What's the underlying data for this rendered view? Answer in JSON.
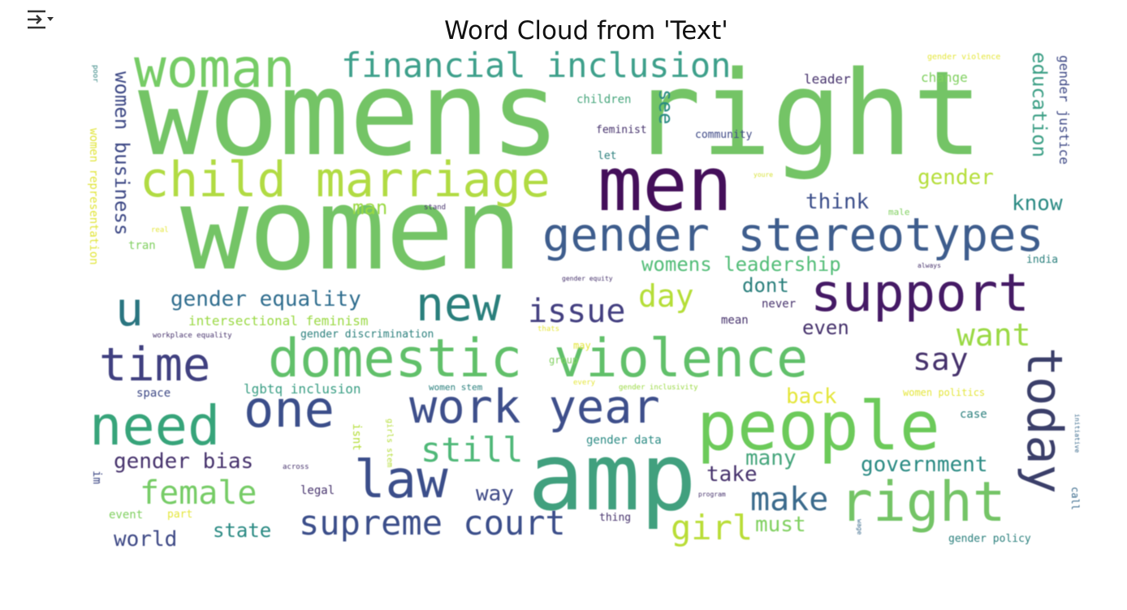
{
  "toolbar": {
    "icon": "output-collapse-icon"
  },
  "chart_data": {
    "type": "wordcloud",
    "title": "Word Cloud from 'Text'",
    "words": [
      {
        "text": "womens right",
        "color": "#74c466"
      },
      {
        "text": "women",
        "color": "#74c466"
      },
      {
        "text": "amp",
        "color": "#41a07e"
      },
      {
        "text": "men",
        "color": "#440f5a"
      },
      {
        "text": "people",
        "color": "#6cca5a"
      },
      {
        "text": "woman",
        "color": "#76cc66"
      },
      {
        "text": "child marriage",
        "color": "#b1db43"
      },
      {
        "text": "domestic violence",
        "color": "#61c06a"
      },
      {
        "text": "gender stereotypes",
        "color": "#3e5d8d"
      },
      {
        "text": "support",
        "color": "#451a65"
      },
      {
        "text": "right",
        "color": "#74c466"
      },
      {
        "text": "today",
        "color": "#3b3f6a"
      },
      {
        "text": "need",
        "color": "#37a47a"
      },
      {
        "text": "one",
        "color": "#3b4e8a"
      },
      {
        "text": "law",
        "color": "#3b4e8a"
      },
      {
        "text": "work year",
        "color": "#3e4f8b"
      },
      {
        "text": "time",
        "color": "#404080"
      },
      {
        "text": "new",
        "color": "#2a7f7c"
      },
      {
        "text": "u",
        "color": "#2a7580"
      },
      {
        "text": "financial inclusion",
        "color": "#3ea08b"
      },
      {
        "text": "issue",
        "color": "#433f80"
      },
      {
        "text": "supreme court",
        "color": "#3b4e8a"
      },
      {
        "text": "still",
        "color": "#4fb878"
      },
      {
        "text": "female",
        "color": "#76cc66"
      },
      {
        "text": "girl",
        "color": "#b9dd37"
      },
      {
        "text": "make",
        "color": "#3a6a8c"
      },
      {
        "text": "say",
        "color": "#46326c"
      },
      {
        "text": "want",
        "color": "#9ad944"
      },
      {
        "text": "day",
        "color": "#b5de38"
      },
      {
        "text": "gender equality",
        "color": "#2f6d8e"
      },
      {
        "text": "womens leadership",
        "color": "#53bd78"
      },
      {
        "text": "gender bias",
        "color": "#46326c"
      },
      {
        "text": "government",
        "color": "#2a8a83"
      },
      {
        "text": "women business",
        "color": "#3d4885"
      },
      {
        "text": "education",
        "color": "#3a9e84"
      },
      {
        "text": "gender",
        "color": "#b5de3a"
      },
      {
        "text": "know",
        "color": "#2a8a83"
      },
      {
        "text": "think",
        "color": "#3b4e8a"
      },
      {
        "text": "dont",
        "color": "#2a7f7c"
      },
      {
        "text": "even",
        "color": "#46326c"
      },
      {
        "text": "back",
        "color": "#e4e63b"
      },
      {
        "text": "many",
        "color": "#45a57b"
      },
      {
        "text": "take",
        "color": "#46326c"
      },
      {
        "text": "must",
        "color": "#80d060"
      },
      {
        "text": "way",
        "color": "#3d4885"
      },
      {
        "text": "world",
        "color": "#3d4885"
      },
      {
        "text": "state",
        "color": "#2a8a83"
      },
      {
        "text": "see",
        "color": "#2a8a83"
      },
      {
        "text": "man",
        "color": "#9ad944"
      },
      {
        "text": "gender justice",
        "color": "#3d4885"
      },
      {
        "text": "women representation",
        "color": "#e1e53a"
      },
      {
        "text": "leader",
        "color": "#46326c"
      },
      {
        "text": "change",
        "color": "#80d060"
      },
      {
        "text": "children",
        "color": "#45a57b"
      },
      {
        "text": "feminist",
        "color": "#46326c"
      },
      {
        "text": "community",
        "color": "#3d4885"
      },
      {
        "text": "let",
        "color": "#2a7f7c"
      },
      {
        "text": "gender violence",
        "color": "#e4e63b"
      },
      {
        "text": "youre",
        "color": "#d7e23b"
      },
      {
        "text": "male",
        "color": "#80d060"
      },
      {
        "text": "india",
        "color": "#2a7f7c"
      },
      {
        "text": "always",
        "color": "#46326c"
      },
      {
        "text": "never",
        "color": "#46326c"
      },
      {
        "text": "mean",
        "color": "#46326c"
      },
      {
        "text": "intersectional feminism",
        "color": "#9ad944"
      },
      {
        "text": "gender discrimination",
        "color": "#2a7f7c"
      },
      {
        "text": "workplace equality",
        "color": "#46326c"
      },
      {
        "text": "lgbtq inclusion",
        "color": "#3a9e84"
      },
      {
        "text": "space",
        "color": "#3d4885"
      },
      {
        "text": "women stem",
        "color": "#2a7f7c"
      },
      {
        "text": "gender inclusivity",
        "color": "#9ad944"
      },
      {
        "text": "women politics",
        "color": "#e4e63b"
      },
      {
        "text": "case",
        "color": "#2a7f7c"
      },
      {
        "text": "gender data",
        "color": "#2a8a83"
      },
      {
        "text": "gender policy",
        "color": "#2a7f7c"
      },
      {
        "text": "legal",
        "color": "#46326c"
      },
      {
        "text": "event",
        "color": "#80d060"
      },
      {
        "text": "part",
        "color": "#e4e63b"
      },
      {
        "text": "thing",
        "color": "#46326c"
      },
      {
        "text": "program",
        "color": "#46326c"
      },
      {
        "text": "call",
        "color": "#3a6a8c"
      },
      {
        "text": "initiative",
        "color": "#3a6a8c"
      },
      {
        "text": "isnt",
        "color": "#b5de3a"
      },
      {
        "text": "girls stem",
        "color": "#b5de3a"
      },
      {
        "text": "im",
        "color": "#3d4885"
      },
      {
        "text": "across",
        "color": "#46326c"
      },
      {
        "text": "real",
        "color": "#e4e63b"
      },
      {
        "text": "tran",
        "color": "#80d060"
      },
      {
        "text": "stand",
        "color": "#46326c"
      },
      {
        "text": "group",
        "color": "#80d060"
      },
      {
        "text": "every",
        "color": "#e4e63b"
      },
      {
        "text": "may",
        "color": "#e4e63b"
      },
      {
        "text": "thats",
        "color": "#e4e63b"
      },
      {
        "text": "gender equity",
        "color": "#46326c"
      },
      {
        "text": "poor",
        "color": "#2a7f7c"
      },
      {
        "text": "wage",
        "color": "#3a6a8c"
      }
    ]
  }
}
